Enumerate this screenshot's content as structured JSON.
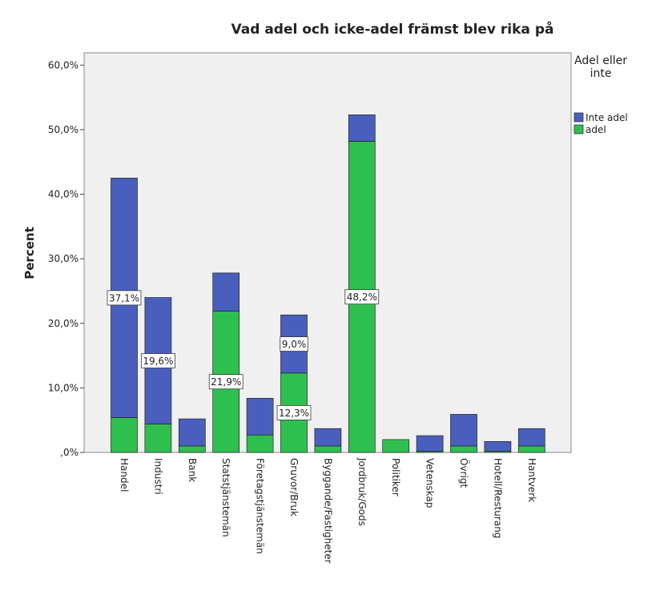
{
  "chart_data": {
    "type": "stacked_bar",
    "title": "Vad adel och icke-adel främst blev rika på",
    "y_label": "Percent",
    "legend_title": "Adel eller inte",
    "legend": "right",
    "categories": [
      "Handel",
      "Industri",
      "Bank",
      "Statstjänstemän",
      "Företagstjänstemän",
      "Gruvor/Bruk",
      "Byggande/Fastigheter",
      "Jordbruk/Gods",
      "Politiker",
      "Vetenskap",
      "Övrigt",
      "Hotell/Resturang",
      "Hantverk"
    ],
    "series": [
      {
        "name": "adel",
        "color": "#2fbf4f",
        "values": [
          5.4,
          4.4,
          1.0,
          21.9,
          2.7,
          12.3,
          1.0,
          48.2,
          2.0,
          0.2,
          1.0,
          0.2,
          1.0
        ],
        "value_labels": [
          null,
          null,
          null,
          "21,9%",
          null,
          "12,3%",
          null,
          "48,2%",
          null,
          null,
          null,
          null,
          null
        ]
      },
      {
        "name": "Inte adel",
        "color": "#4a5fbd",
        "values": [
          37.1,
          19.6,
          4.2,
          5.9,
          5.7,
          9.0,
          2.7,
          4.1,
          0,
          2.4,
          4.9,
          1.5,
          2.7
        ],
        "value_labels": [
          "37,1%",
          "19,6%",
          null,
          null,
          null,
          "9,0%",
          null,
          null,
          null,
          null,
          null,
          null,
          null
        ]
      }
    ],
    "ylim": [
      0,
      61.9
    ],
    "yticks": [
      {
        "value": 0,
        "label": ",0%"
      },
      {
        "value": 10,
        "label": "10,0%"
      },
      {
        "value": 20,
        "label": "20,0%"
      },
      {
        "value": 30,
        "label": "30,0%"
      },
      {
        "value": 40,
        "label": "40,0%"
      },
      {
        "value": 50,
        "label": "50,0%"
      },
      {
        "value": 60,
        "label": "60,0%"
      }
    ]
  }
}
